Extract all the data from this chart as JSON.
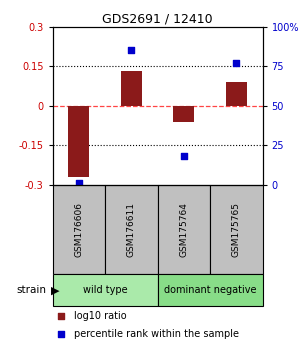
{
  "title": "GDS2691 / 12410",
  "samples": [
    "GSM176606",
    "GSM176611",
    "GSM175764",
    "GSM175765"
  ],
  "log10_ratio": [
    -0.27,
    0.13,
    -0.06,
    0.09
  ],
  "percentile_rank": [
    1.0,
    85.0,
    18.0,
    77.0
  ],
  "groups": [
    {
      "label": "wild type",
      "start": 0,
      "end": 2,
      "color": "#aaeaaa"
    },
    {
      "label": "dominant negative",
      "start": 2,
      "end": 4,
      "color": "#88dd88"
    }
  ],
  "group_row_label": "strain",
  "ylim_left": [
    -0.3,
    0.3
  ],
  "ylim_right": [
    0,
    100
  ],
  "yticks_left": [
    -0.3,
    -0.15,
    0,
    0.15,
    0.3
  ],
  "ytick_labels_left": [
    "-0.3",
    "-0.15",
    "0",
    "0.15",
    "0.3"
  ],
  "yticks_right": [
    0,
    25,
    50,
    75,
    100
  ],
  "ytick_labels_right": [
    "0",
    "25",
    "50",
    "75",
    "100%"
  ],
  "bar_color": "#8B1A1A",
  "dot_color": "#0000CC",
  "zero_line_color": "#FF4444",
  "dotted_line_color": "#000000",
  "left_axis_color": "#CC0000",
  "right_axis_color": "#0000CC",
  "legend_bar_label": "log10 ratio",
  "legend_dot_label": "percentile rank within the sample",
  "sample_box_color": "#C0C0C0",
  "bar_width": 0.4,
  "dot_size": 20
}
